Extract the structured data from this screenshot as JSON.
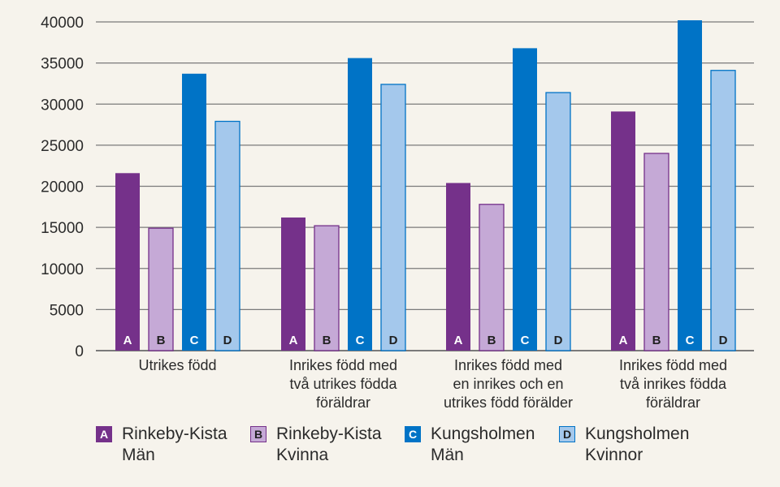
{
  "colors": {
    "A": "#75318a",
    "B": "#c5a9d6",
    "C": "#0073c6",
    "D": "#a4c8ec",
    "grid": "#7a7a7a"
  },
  "chart_data": {
    "type": "bar",
    "categories": [
      [
        "Utrikes född"
      ],
      [
        "Inrikes född med",
        "två utrikes födda",
        "föräldrar"
      ],
      [
        "Inrikes född med",
        "en inrikes och en",
        "utrikes född förälder"
      ],
      [
        "Inrikes född med",
        "två inrikes födda",
        "föräldrar"
      ]
    ],
    "series": [
      {
        "letter": "A",
        "name": [
          "Rinkeby-Kista",
          "Män"
        ],
        "values": [
          21600,
          16200,
          20400,
          29100
        ]
      },
      {
        "letter": "B",
        "name": [
          "Rinkeby-Kista",
          "Kvinna"
        ],
        "values": [
          14900,
          15200,
          17800,
          24000
        ]
      },
      {
        "letter": "C",
        "name": [
          "Kungsholmen",
          "Män"
        ],
        "values": [
          33700,
          35600,
          36800,
          40200
        ]
      },
      {
        "letter": "D",
        "name": [
          "Kungsholmen",
          "Kvinnor"
        ],
        "values": [
          27900,
          32400,
          31400,
          34100
        ]
      }
    ],
    "yticks": [
      "0",
      "5000",
      "10000",
      "15000",
      "20000",
      "25000",
      "30000",
      "35000",
      "40000"
    ],
    "ylim": [
      0,
      40000
    ],
    "grid": true,
    "legend_position": "bottom"
  }
}
